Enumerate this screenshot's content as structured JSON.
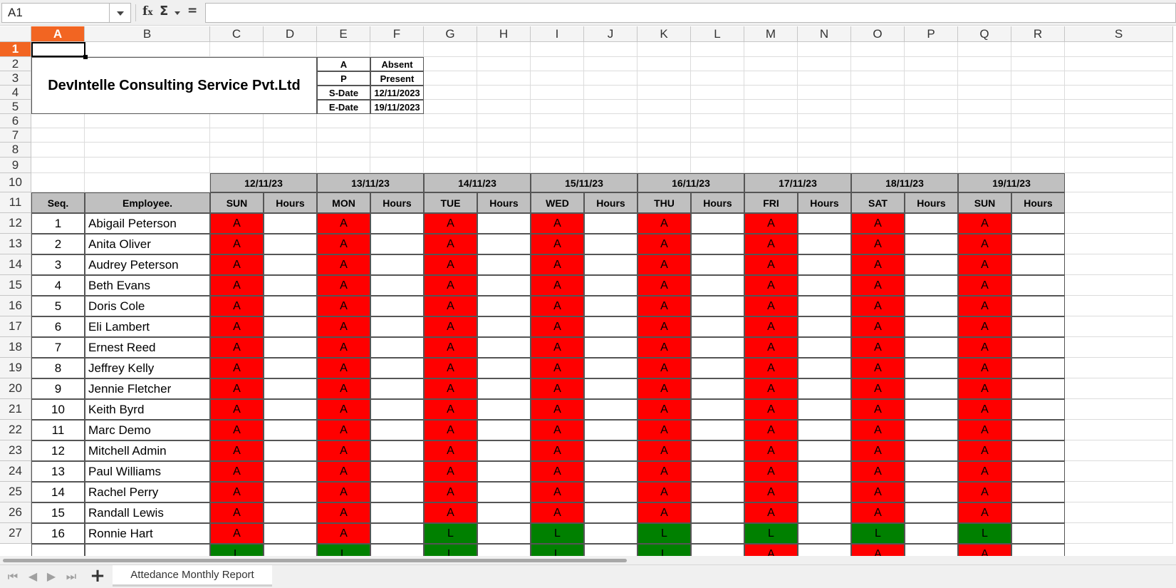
{
  "toolbar": {
    "name_box": "A1",
    "fx_icon": "function-icon",
    "sigma_icon": "sum-icon",
    "equals_icon": "formula-equals-icon",
    "formula": ""
  },
  "columns": [
    "A",
    "B",
    "C",
    "D",
    "E",
    "F",
    "G",
    "H",
    "I",
    "J",
    "K",
    "L",
    "M",
    "N",
    "O",
    "P",
    "Q",
    "R",
    "S"
  ],
  "selected_column": "A",
  "rows": [
    "1",
    "2",
    "3",
    "4",
    "5",
    "6",
    "7",
    "8",
    "9",
    "10",
    "11",
    "12",
    "13",
    "14",
    "15",
    "16",
    "17",
    "18",
    "19",
    "20",
    "21",
    "22",
    "23",
    "24",
    "25",
    "26",
    "27"
  ],
  "selected_row": "1",
  "company": "DevIntelle Consulting Service Pvt.Ltd",
  "legend": [
    {
      "key": "A",
      "value": "Absent"
    },
    {
      "key": "P",
      "value": "Present"
    },
    {
      "key": "S-Date",
      "value": "12/11/2023"
    },
    {
      "key": "E-Date",
      "value": "19/11/2023"
    }
  ],
  "table": {
    "seq_header": "Seq.",
    "employee_header": "Employee.",
    "hours_header": "Hours",
    "days": [
      {
        "date": "12/11/23",
        "day": "SUN"
      },
      {
        "date": "13/11/23",
        "day": "MON"
      },
      {
        "date": "14/11/23",
        "day": "TUE"
      },
      {
        "date": "15/11/23",
        "day": "WED"
      },
      {
        "date": "16/11/23",
        "day": "THU"
      },
      {
        "date": "17/11/23",
        "day": "FRI"
      },
      {
        "date": "18/11/23",
        "day": "SAT"
      },
      {
        "date": "19/11/23",
        "day": "SUN"
      }
    ],
    "employees": [
      {
        "seq": "1",
        "name": "Abigail Peterson",
        "status": [
          "A",
          "A",
          "A",
          "A",
          "A",
          "A",
          "A",
          "A"
        ]
      },
      {
        "seq": "2",
        "name": "Anita Oliver",
        "status": [
          "A",
          "A",
          "A",
          "A",
          "A",
          "A",
          "A",
          "A"
        ]
      },
      {
        "seq": "3",
        "name": "Audrey Peterson",
        "status": [
          "A",
          "A",
          "A",
          "A",
          "A",
          "A",
          "A",
          "A"
        ]
      },
      {
        "seq": "4",
        "name": "Beth Evans",
        "status": [
          "A",
          "A",
          "A",
          "A",
          "A",
          "A",
          "A",
          "A"
        ]
      },
      {
        "seq": "5",
        "name": "Doris Cole",
        "status": [
          "A",
          "A",
          "A",
          "A",
          "A",
          "A",
          "A",
          "A"
        ]
      },
      {
        "seq": "6",
        "name": "Eli Lambert",
        "status": [
          "A",
          "A",
          "A",
          "A",
          "A",
          "A",
          "A",
          "A"
        ]
      },
      {
        "seq": "7",
        "name": "Ernest Reed",
        "status": [
          "A",
          "A",
          "A",
          "A",
          "A",
          "A",
          "A",
          "A"
        ]
      },
      {
        "seq": "8",
        "name": "Jeffrey Kelly",
        "status": [
          "A",
          "A",
          "A",
          "A",
          "A",
          "A",
          "A",
          "A"
        ]
      },
      {
        "seq": "9",
        "name": "Jennie Fletcher",
        "status": [
          "A",
          "A",
          "A",
          "A",
          "A",
          "A",
          "A",
          "A"
        ]
      },
      {
        "seq": "10",
        "name": "Keith Byrd",
        "status": [
          "A",
          "A",
          "A",
          "A",
          "A",
          "A",
          "A",
          "A"
        ]
      },
      {
        "seq": "11",
        "name": "Marc Demo",
        "status": [
          "A",
          "A",
          "A",
          "A",
          "A",
          "A",
          "A",
          "A"
        ]
      },
      {
        "seq": "12",
        "name": "Mitchell Admin",
        "status": [
          "A",
          "A",
          "A",
          "A",
          "A",
          "A",
          "A",
          "A"
        ]
      },
      {
        "seq": "13",
        "name": "Paul Williams",
        "status": [
          "A",
          "A",
          "A",
          "A",
          "A",
          "A",
          "A",
          "A"
        ]
      },
      {
        "seq": "14",
        "name": "Rachel Perry",
        "status": [
          "A",
          "A",
          "A",
          "A",
          "A",
          "A",
          "A",
          "A"
        ]
      },
      {
        "seq": "15",
        "name": "Randall Lewis",
        "status": [
          "A",
          "A",
          "A",
          "A",
          "A",
          "A",
          "A",
          "A"
        ]
      },
      {
        "seq": "16",
        "name": "Ronnie Hart",
        "status": [
          "A",
          "A",
          "L",
          "L",
          "L",
          "L",
          "L",
          "L"
        ]
      },
      {
        "seq": "",
        "name": "",
        "status": [
          "L",
          "L",
          "L",
          "L",
          "L",
          "A",
          "A",
          "A"
        ]
      }
    ]
  },
  "colors": {
    "absent": "#ff0000",
    "leave": "#008000",
    "header": "#c0c0c0",
    "selection": "#f26522"
  },
  "sheet_tab": "Attedance Monthly Report",
  "tab_nav": {
    "first": "⏮",
    "prev": "◀",
    "next": "▶",
    "last": "⏭",
    "add": "+"
  }
}
